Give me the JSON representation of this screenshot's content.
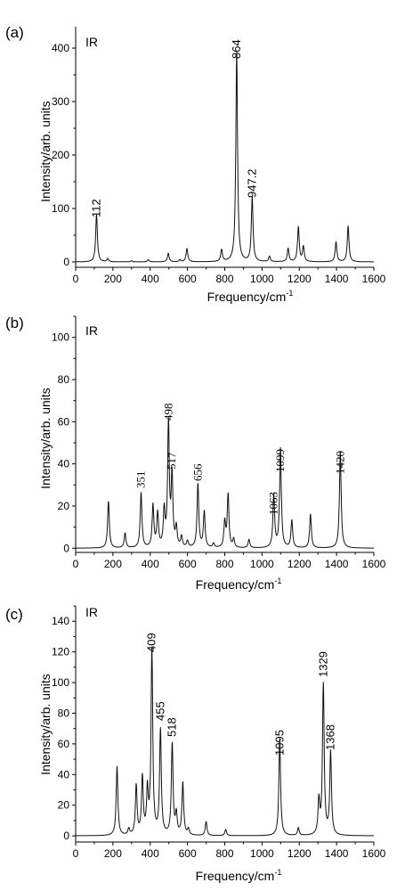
{
  "chart_data": [
    {
      "type": "line",
      "panel_label": "(a)",
      "series_label": "IR",
      "xlabel": "Frequency/cm",
      "xlabel_sup": "-1",
      "ylabel": "Intensity/arb. units",
      "xlim": [
        0,
        1600
      ],
      "ylim": [
        -10,
        440
      ],
      "xticks": [
        0,
        200,
        400,
        600,
        800,
        1000,
        1200,
        1400,
        1600
      ],
      "yticks": [
        0,
        100,
        200,
        300,
        400
      ],
      "peak_labels": [
        "112",
        "864",
        "947.2"
      ],
      "label_font": "sans",
      "peaks": [
        {
          "x": 112,
          "y": 88
        },
        {
          "x": 172,
          "y": 6
        },
        {
          "x": 300,
          "y": 2
        },
        {
          "x": 390,
          "y": 4
        },
        {
          "x": 497,
          "y": 16
        },
        {
          "x": 560,
          "y": 4
        },
        {
          "x": 597,
          "y": 25
        },
        {
          "x": 783,
          "y": 22
        },
        {
          "x": 864,
          "y": 393
        },
        {
          "x": 947.2,
          "y": 120
        },
        {
          "x": 1040,
          "y": 10
        },
        {
          "x": 1140,
          "y": 25
        },
        {
          "x": 1195,
          "y": 65
        },
        {
          "x": 1222,
          "y": 28
        },
        {
          "x": 1397,
          "y": 37
        },
        {
          "x": 1462,
          "y": 67
        }
      ]
    },
    {
      "type": "line",
      "panel_label": "(b)",
      "series_label": "IR",
      "xlabel": "Frequency/cm",
      "xlabel_sup": "-1",
      "ylabel": "Intensity/arb. units",
      "xlim": [
        0,
        1600
      ],
      "ylim": [
        -2,
        110
      ],
      "xticks": [
        0,
        200,
        400,
        600,
        800,
        1000,
        1200,
        1400,
        1600
      ],
      "yticks": [
        0,
        20,
        40,
        60,
        80,
        100
      ],
      "peak_labels": [
        "351",
        "498",
        "517",
        "656",
        "1063",
        "1099",
        "1420"
      ],
      "label_font": "serif",
      "peaks": [
        {
          "x": 176,
          "y": 22
        },
        {
          "x": 265,
          "y": 7
        },
        {
          "x": 351,
          "y": 26
        },
        {
          "x": 415,
          "y": 20
        },
        {
          "x": 440,
          "y": 16
        },
        {
          "x": 475,
          "y": 17
        },
        {
          "x": 498,
          "y": 58
        },
        {
          "x": 517,
          "y": 33
        },
        {
          "x": 540,
          "y": 9
        },
        {
          "x": 568,
          "y": 5
        },
        {
          "x": 600,
          "y": 3
        },
        {
          "x": 656,
          "y": 30
        },
        {
          "x": 690,
          "y": 17
        },
        {
          "x": 740,
          "y": 2
        },
        {
          "x": 800,
          "y": 12
        },
        {
          "x": 818,
          "y": 25
        },
        {
          "x": 848,
          "y": 4
        },
        {
          "x": 930,
          "y": 4
        },
        {
          "x": 1063,
          "y": 25
        },
        {
          "x": 1099,
          "y": 47
        },
        {
          "x": 1160,
          "y": 13
        },
        {
          "x": 1260,
          "y": 16
        },
        {
          "x": 1420,
          "y": 46
        }
      ]
    },
    {
      "type": "line",
      "panel_label": "(c)",
      "series_label": "IR",
      "xlabel": "Frequency/cm",
      "xlabel_sup": "-1",
      "ylabel": "Intensity/arb. units",
      "xlim": [
        0,
        1600
      ],
      "ylim": [
        -4,
        150
      ],
      "xticks": [
        0,
        200,
        400,
        600,
        800,
        1000,
        1200,
        1400,
        1600
      ],
      "yticks": [
        0,
        20,
        40,
        60,
        80,
        100,
        120,
        140
      ],
      "peak_labels": [
        "409",
        "455",
        "518",
        "1095",
        "1329",
        "1368"
      ],
      "label_font": "sans",
      "peaks": [
        {
          "x": 222,
          "y": 45
        },
        {
          "x": 285,
          "y": 4
        },
        {
          "x": 325,
          "y": 32
        },
        {
          "x": 358,
          "y": 37
        },
        {
          "x": 385,
          "y": 28
        },
        {
          "x": 409,
          "y": 120
        },
        {
          "x": 455,
          "y": 68
        },
        {
          "x": 518,
          "y": 59
        },
        {
          "x": 540,
          "y": 13
        },
        {
          "x": 575,
          "y": 34
        },
        {
          "x": 605,
          "y": 4
        },
        {
          "x": 700,
          "y": 9
        },
        {
          "x": 805,
          "y": 4
        },
        {
          "x": 1095,
          "y": 63
        },
        {
          "x": 1195,
          "y": 5
        },
        {
          "x": 1305,
          "y": 22
        },
        {
          "x": 1329,
          "y": 98
        },
        {
          "x": 1368,
          "y": 54
        }
      ]
    }
  ]
}
